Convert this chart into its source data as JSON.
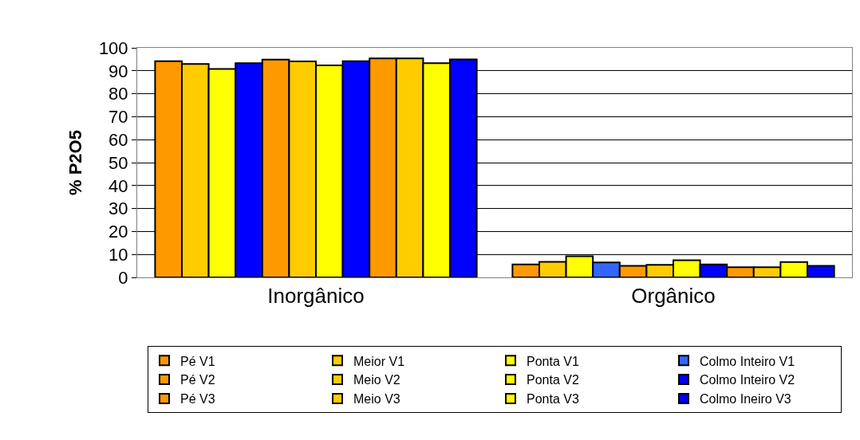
{
  "chart_data": {
    "type": "bar",
    "ylabel": "% P2O5",
    "categories": [
      "Inorgânico",
      "Orgânico"
    ],
    "series": [
      {
        "name": "Pé V1",
        "color": "#ff9900",
        "values": [
          94.2,
          5.6
        ]
      },
      {
        "name": "Meior V1",
        "color": "#ffcc00",
        "values": [
          93.0,
          6.8
        ]
      },
      {
        "name": "Ponta V1",
        "color": "#ffff00",
        "values": [
          90.8,
          9.2
        ]
      },
      {
        "name": "Colmo Inteiro V1",
        "color": "#3366ff",
        "colors": [
          "#0000ff",
          "#3366ff"
        ],
        "values": [
          93.3,
          6.5
        ]
      },
      {
        "name": "Pé V2",
        "color": "#ff9900",
        "values": [
          94.9,
          5.0
        ]
      },
      {
        "name": "Meio V2",
        "color": "#ffcc00",
        "values": [
          94.1,
          5.5
        ]
      },
      {
        "name": "Ponta V2",
        "color": "#ffff00",
        "values": [
          92.4,
          7.5
        ]
      },
      {
        "name": "Colmo Inteiro V2",
        "color": "#0000ff",
        "values": [
          94.2,
          5.6
        ]
      },
      {
        "name": "Pé V3",
        "color": "#ff9900",
        "values": [
          95.4,
          4.4
        ]
      },
      {
        "name": "Meio V3",
        "color": "#ffcc00",
        "values": [
          95.4,
          4.4
        ]
      },
      {
        "name": "Ponta V3",
        "color": "#ffff00",
        "values": [
          93.3,
          6.7
        ]
      },
      {
        "name": "Colmo Ineiro V3",
        "color": "#0000ff",
        "values": [
          95.0,
          5.0
        ]
      }
    ],
    "ylim": [
      0,
      100
    ],
    "yticks": [
      0,
      10,
      20,
      30,
      40,
      50,
      60,
      70,
      80,
      90,
      100
    ],
    "grid": "y",
    "legend": "bottom"
  }
}
